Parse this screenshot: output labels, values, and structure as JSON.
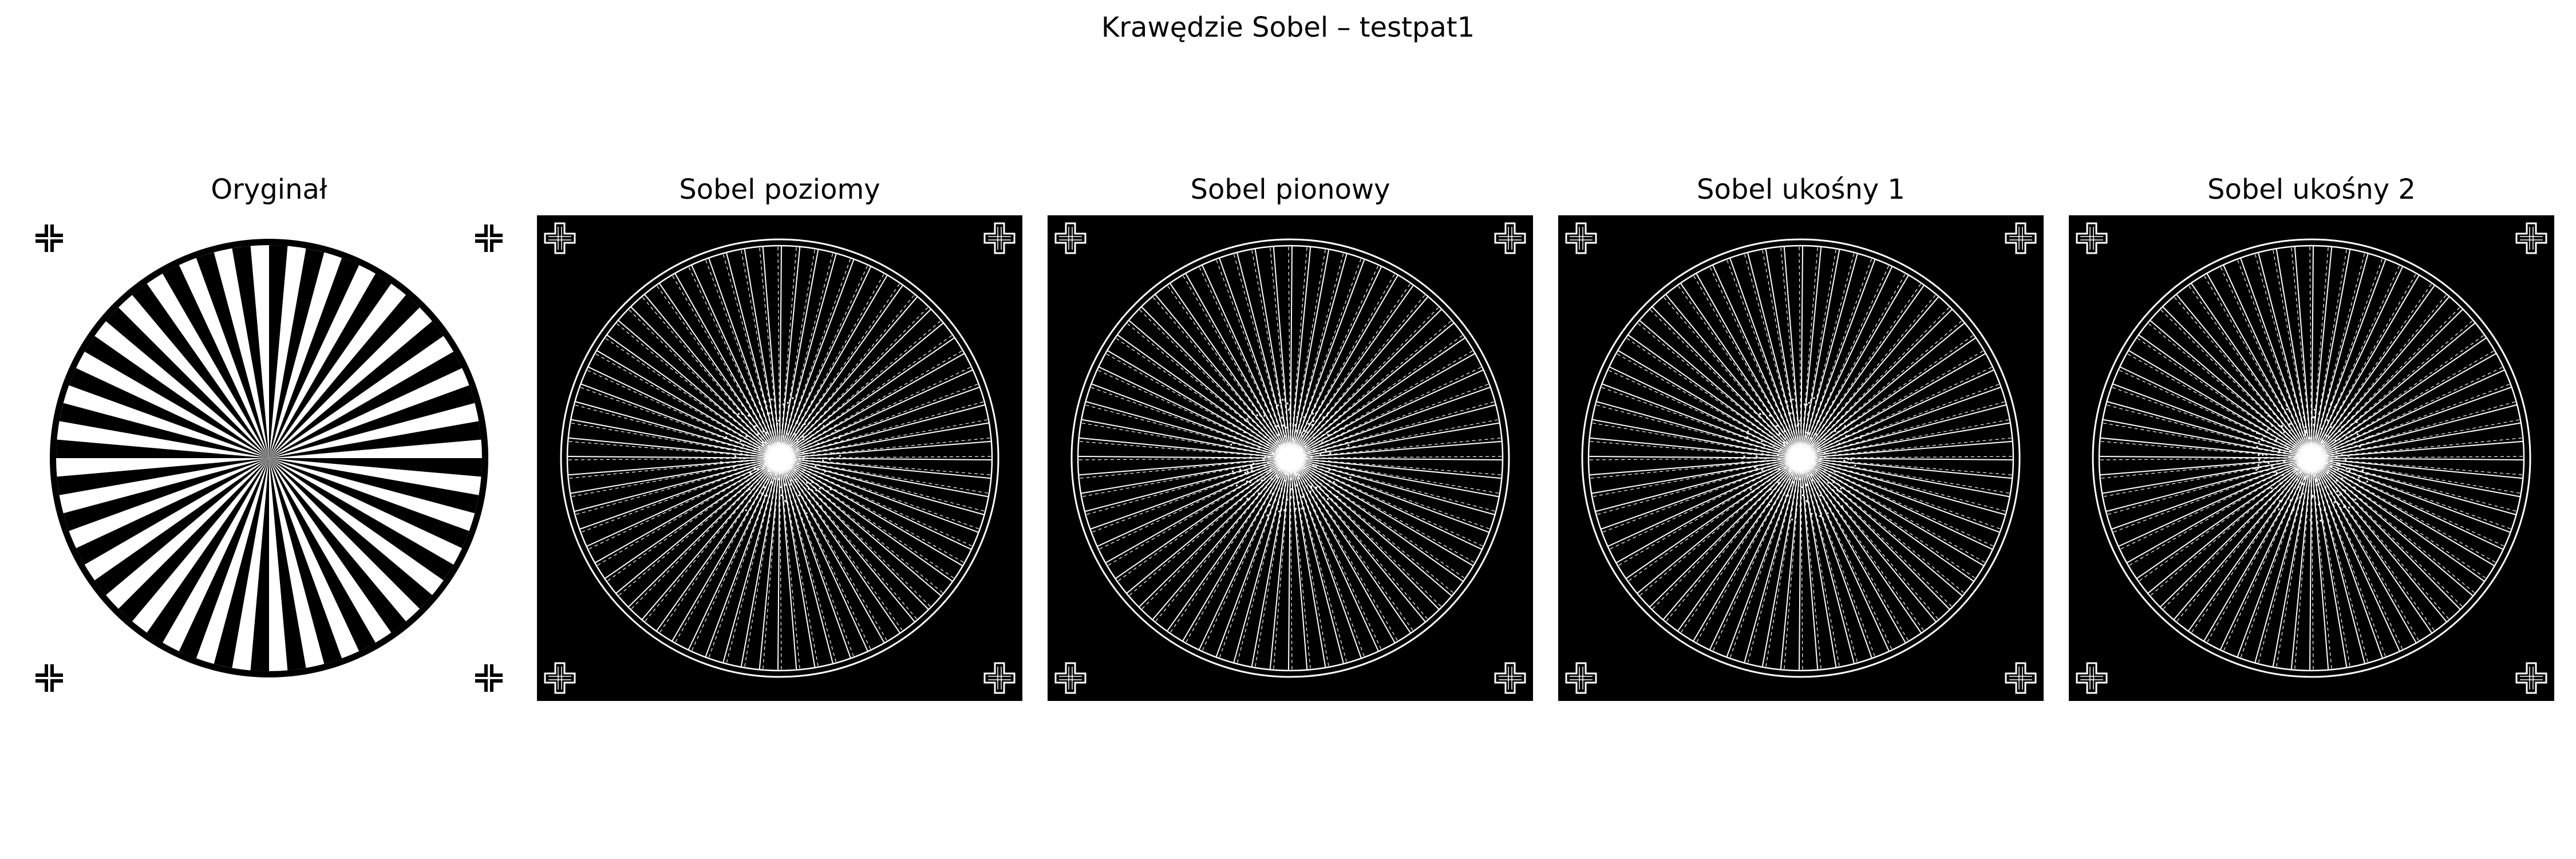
{
  "figure": {
    "title": "Krawędzie Sobel – testpat1"
  },
  "panels": [
    {
      "title": "Oryginał",
      "kind": "original",
      "background": "#ffffff",
      "foreground": "#000000"
    },
    {
      "title": "Sobel poziomy",
      "kind": "edges",
      "background": "#000000",
      "foreground": "#ffffff"
    },
    {
      "title": "Sobel pionowy",
      "kind": "edges",
      "background": "#000000",
      "foreground": "#ffffff"
    },
    {
      "title": "Sobel ukośny 1",
      "kind": "edges",
      "background": "#000000",
      "foreground": "#ffffff"
    },
    {
      "title": "Sobel ukośny 2",
      "kind": "edges",
      "background": "#000000",
      "foreground": "#ffffff"
    }
  ],
  "pattern": {
    "name": "testpat1",
    "type": "siemens-star",
    "spokes": 36,
    "corner_marks": 4
  }
}
